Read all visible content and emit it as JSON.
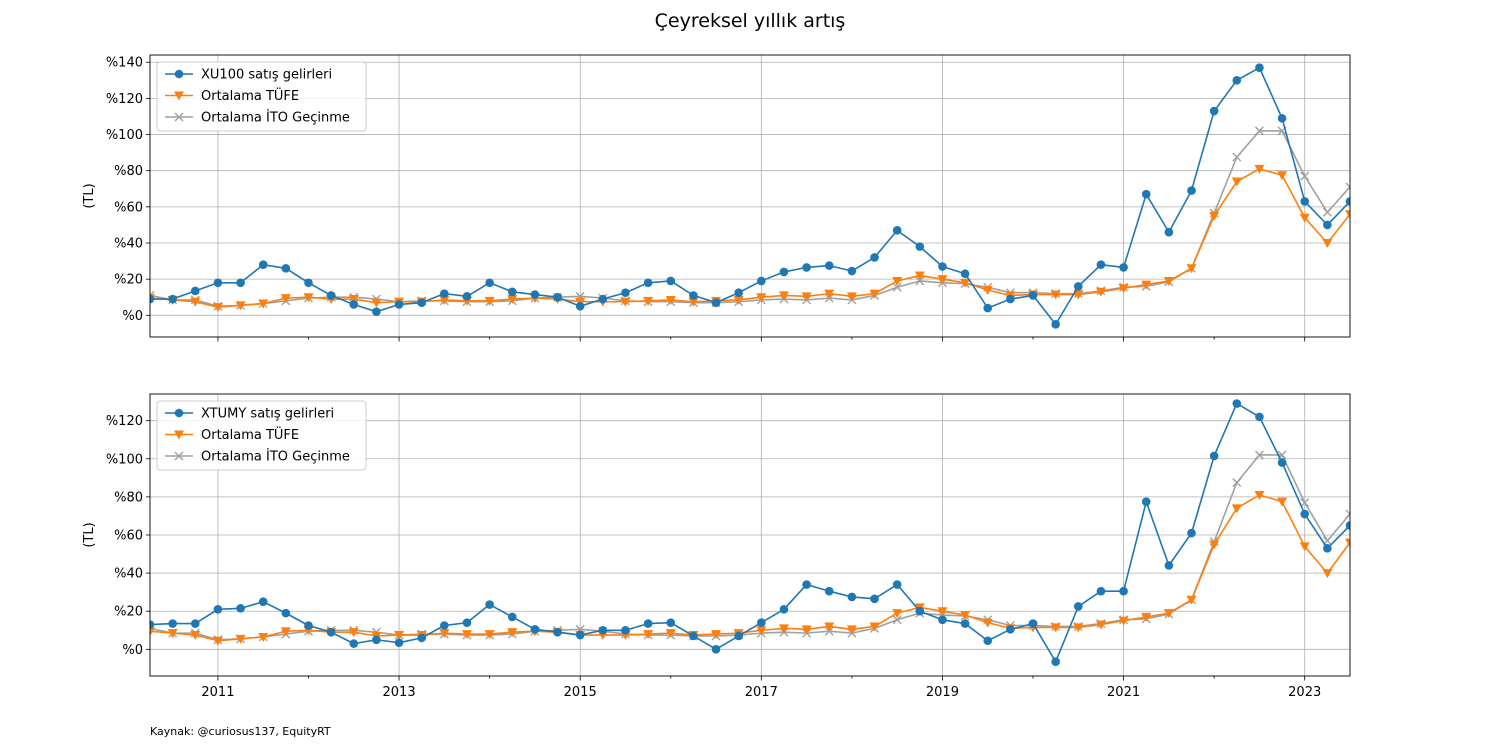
{
  "figure": {
    "title": "Çeyreksel yıllık artış",
    "source": "Kaynak: @curiosus137, EquityRT"
  },
  "chart_data": [
    {
      "type": "line",
      "title": "",
      "xlabel": "",
      "ylabel": "(TL)",
      "x_quarter_index_start": "2010-Q1",
      "xlim": [
        2010.25,
        2023.5
      ],
      "ylim": [
        -12,
        144
      ],
      "yticks": [
        0,
        20,
        40,
        60,
        80,
        100,
        120,
        140
      ],
      "ytick_labels": [
        "%0",
        "%20",
        "%40",
        "%60",
        "%80",
        "%100",
        "%120",
        "%140"
      ],
      "xticks": [
        2011,
        2013,
        2015,
        2017,
        2019,
        2021,
        2023
      ],
      "xtick_labels": [
        "2011",
        "2013",
        "2015",
        "2017",
        "2019",
        "2021",
        "2023"
      ],
      "show_xtick_labels": false,
      "grid": true,
      "legend": "top-left",
      "x": [
        2010.25,
        2010.5,
        2010.75,
        2011.0,
        2011.25,
        2011.5,
        2011.75,
        2012.0,
        2012.25,
        2012.5,
        2012.75,
        2013.0,
        2013.25,
        2013.5,
        2013.75,
        2014.0,
        2014.25,
        2014.5,
        2014.75,
        2015.0,
        2015.25,
        2015.5,
        2015.75,
        2016.0,
        2016.25,
        2016.5,
        2016.75,
        2017.0,
        2017.25,
        2017.5,
        2017.75,
        2018.0,
        2018.25,
        2018.5,
        2018.75,
        2019.0,
        2019.25,
        2019.5,
        2019.75,
        2020.0,
        2020.25,
        2020.5,
        2020.75,
        2021.0,
        2021.25,
        2021.5,
        2021.75,
        2022.0,
        2022.25,
        2022.5,
        2022.75,
        2023.0,
        2023.25,
        2023.5
      ],
      "series": [
        {
          "name": "XU100 satış gelirleri",
          "color": "#1f77b4",
          "marker": "circle",
          "values": [
            9,
            9,
            13.5,
            18,
            18,
            28,
            26,
            18,
            11,
            6,
            2,
            6,
            7,
            12,
            10.5,
            18,
            13,
            11.5,
            10,
            5,
            9,
            12.5,
            18,
            19,
            11,
            7,
            12.5,
            19,
            24,
            26.5,
            27.5,
            24.5,
            32,
            47,
            38,
            27,
            23,
            4,
            9,
            11,
            -5,
            16,
            28,
            26.5,
            67,
            46,
            69,
            113,
            130,
            137,
            109,
            63,
            50,
            63
          ]
        },
        {
          "name": "Ortalama TÜFE",
          "color": "#ff7f0e",
          "marker": "triangle-down",
          "values": [
            9.5,
            8.5,
            7.5,
            4.5,
            5.5,
            6.5,
            9.5,
            10,
            9,
            9,
            7,
            7.5,
            7.5,
            8.5,
            8,
            8,
            9,
            9.5,
            9,
            7.5,
            7.5,
            7.5,
            8,
            8.5,
            7.5,
            8,
            8.5,
            10,
            11,
            10.5,
            12,
            10.5,
            12,
            19,
            22,
            20,
            18,
            14,
            11,
            11.5,
            11.5,
            11.5,
            13,
            15,
            17,
            19,
            26,
            55,
            74,
            81,
            77.5,
            54,
            40,
            56
          ]
        },
        {
          "name": "Ortalama İTO Geçinme",
          "color": "#a0a0a0",
          "marker": "x",
          "values": [
            11,
            8.5,
            8.5,
            5,
            5.5,
            6.5,
            8,
            9.5,
            10,
            10,
            9,
            7.5,
            8,
            8,
            7.5,
            7.5,
            8,
            9.5,
            10,
            10.5,
            9.5,
            8,
            7.5,
            7.5,
            7,
            7,
            7.5,
            8.5,
            9,
            8.5,
            9.5,
            8.5,
            11,
            15.5,
            19,
            18,
            17.5,
            15.5,
            12.5,
            12.5,
            12,
            12,
            13.5,
            15.5,
            16,
            18.5,
            26,
            56.5,
            87.5,
            102,
            102,
            77,
            57,
            71
          ]
        }
      ]
    },
    {
      "type": "line",
      "title": "",
      "xlabel": "",
      "ylabel": "(TL)",
      "x_quarter_index_start": "2010-Q1",
      "xlim": [
        2010.25,
        2023.5
      ],
      "ylim": [
        -14,
        134
      ],
      "yticks": [
        0,
        20,
        40,
        60,
        80,
        100,
        120
      ],
      "ytick_labels": [
        "%0",
        "%20",
        "%40",
        "%60",
        "%80",
        "%100",
        "%120"
      ],
      "xticks": [
        2011,
        2013,
        2015,
        2017,
        2019,
        2021,
        2023
      ],
      "xtick_labels": [
        "2011",
        "2013",
        "2015",
        "2017",
        "2019",
        "2021",
        "2023"
      ],
      "show_xtick_labels": true,
      "grid": true,
      "legend": "top-left",
      "x": [
        2010.25,
        2010.5,
        2010.75,
        2011.0,
        2011.25,
        2011.5,
        2011.75,
        2012.0,
        2012.25,
        2012.5,
        2012.75,
        2013.0,
        2013.25,
        2013.5,
        2013.75,
        2014.0,
        2014.25,
        2014.5,
        2014.75,
        2015.0,
        2015.25,
        2015.5,
        2015.75,
        2016.0,
        2016.25,
        2016.5,
        2016.75,
        2017.0,
        2017.25,
        2017.5,
        2017.75,
        2018.0,
        2018.25,
        2018.5,
        2018.75,
        2019.0,
        2019.25,
        2019.5,
        2019.75,
        2020.0,
        2020.25,
        2020.5,
        2020.75,
        2021.0,
        2021.25,
        2021.5,
        2021.75,
        2022.0,
        2022.25,
        2022.5,
        2022.75,
        2023.0,
        2023.25,
        2023.5
      ],
      "series": [
        {
          "name": "XTUMY satış gelirleri",
          "color": "#1f77b4",
          "marker": "circle",
          "values": [
            13,
            13.5,
            13.5,
            21,
            21.5,
            25,
            19,
            12.5,
            9,
            3,
            5,
            3.5,
            6,
            12.5,
            14,
            23.5,
            17,
            10.5,
            9,
            7.5,
            10,
            10,
            13.5,
            14,
            7,
            0,
            7,
            14,
            21,
            34,
            30.5,
            27.5,
            26.5,
            34,
            20,
            15.5,
            13.5,
            4.5,
            10.5,
            13.5,
            -6.5,
            22.5,
            30.5,
            30.5,
            77.5,
            44,
            61,
            101.5,
            129,
            122,
            98,
            71,
            53,
            65
          ]
        },
        {
          "name": "Ortalama TÜFE",
          "color": "#ff7f0e",
          "marker": "triangle-down",
          "values": [
            9.5,
            8.5,
            7.5,
            4.5,
            5.5,
            6.5,
            9.5,
            10,
            9,
            9,
            7,
            7.5,
            7.5,
            8.5,
            8,
            8,
            9,
            9.5,
            9,
            7.5,
            7.5,
            7.5,
            8,
            8.5,
            7.5,
            8,
            8.5,
            10,
            11,
            10.5,
            12,
            10.5,
            12,
            19,
            22,
            20,
            18,
            14,
            11,
            11.5,
            11.5,
            11.5,
            13,
            15,
            17,
            19,
            26,
            55,
            74,
            81,
            77.5,
            54,
            40,
            56
          ]
        },
        {
          "name": "Ortalama İTO Geçinme",
          "color": "#a0a0a0",
          "marker": "x",
          "values": [
            11,
            8.5,
            8.5,
            5,
            5.5,
            6.5,
            8,
            9.5,
            10,
            10,
            9,
            7.5,
            8,
            8,
            7.5,
            7.5,
            8,
            9.5,
            10,
            10.5,
            9.5,
            8,
            7.5,
            7.5,
            7,
            7,
            7.5,
            8.5,
            9,
            8.5,
            9.5,
            8.5,
            11,
            15.5,
            19,
            18,
            17.5,
            15.5,
            12.5,
            12.5,
            12,
            12,
            13.5,
            15.5,
            16,
            18.5,
            26,
            56.5,
            87.5,
            102,
            102,
            77,
            57,
            71
          ]
        }
      ]
    }
  ]
}
